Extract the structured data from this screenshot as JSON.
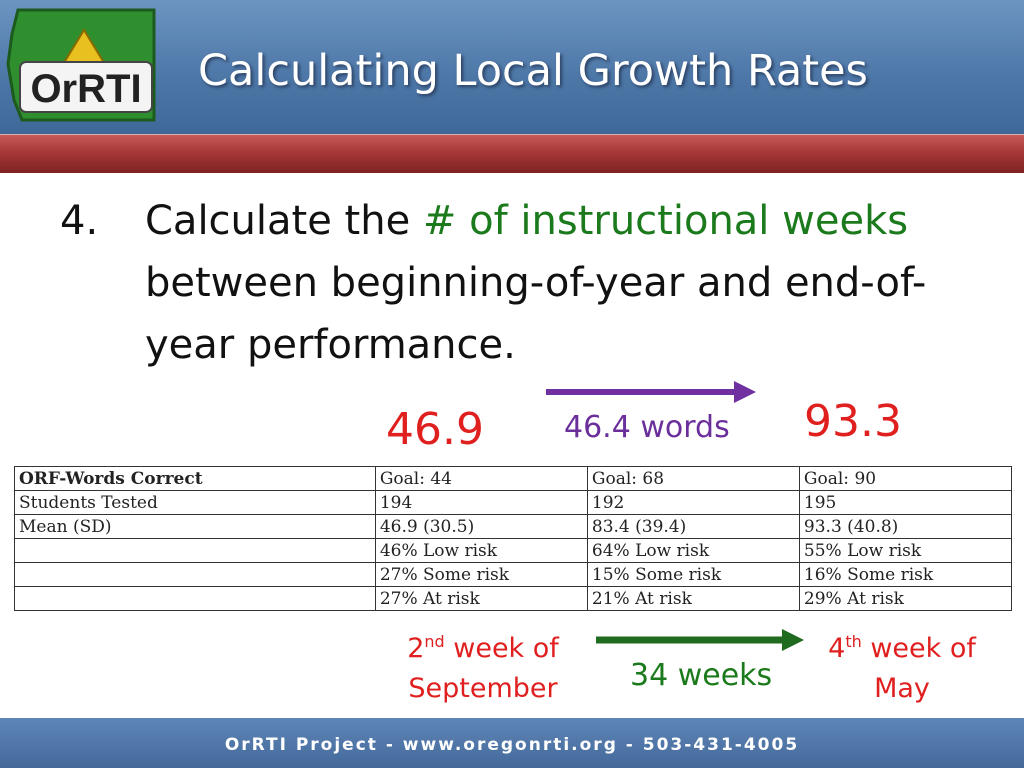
{
  "header": {
    "title": "Calculating Local Growth Rates",
    "logo_text": "OrRTI"
  },
  "step": {
    "number": "4.",
    "text_before": "Calculate the ",
    "highlight": "# of instructional weeks",
    "text_after": " between beginning-of-year and end-of-year performance."
  },
  "scores": {
    "start_value": "46.9",
    "end_value": "93.3",
    "difference_label": "46.4 words"
  },
  "table": {
    "rows": [
      [
        "ORF-Words Correct",
        "Goal: 44",
        "Goal: 68",
        "Goal: 90"
      ],
      [
        "Students Tested",
        "194",
        "192",
        "195"
      ],
      [
        "Mean (SD)",
        "46.9 (30.5)",
        "83.4 (39.4)",
        "93.3 (40.8)"
      ],
      [
        "",
        "46% Low risk",
        "64% Low risk",
        "55% Low risk"
      ],
      [
        "",
        "27% Some risk",
        "15% Some risk",
        "16% Some risk"
      ],
      [
        "",
        "27% At risk",
        "21% At risk",
        "29% At risk"
      ]
    ]
  },
  "weeks": {
    "start_num": "2",
    "start_sup": "nd",
    "start_rest": " week of",
    "start_month": "September",
    "end_num": "4",
    "end_sup": "th",
    "end_rest": " week of",
    "end_month": "May",
    "duration_label": "34 weeks"
  },
  "footer": {
    "text": "OrRTI Project - www.oregonrti.org - 503-431-4005"
  },
  "colors": {
    "header_blue": "#4e78a8",
    "accent_red": "#e01f1f",
    "accent_green": "#1b7a1b",
    "accent_purple": "#6b2f9c"
  }
}
